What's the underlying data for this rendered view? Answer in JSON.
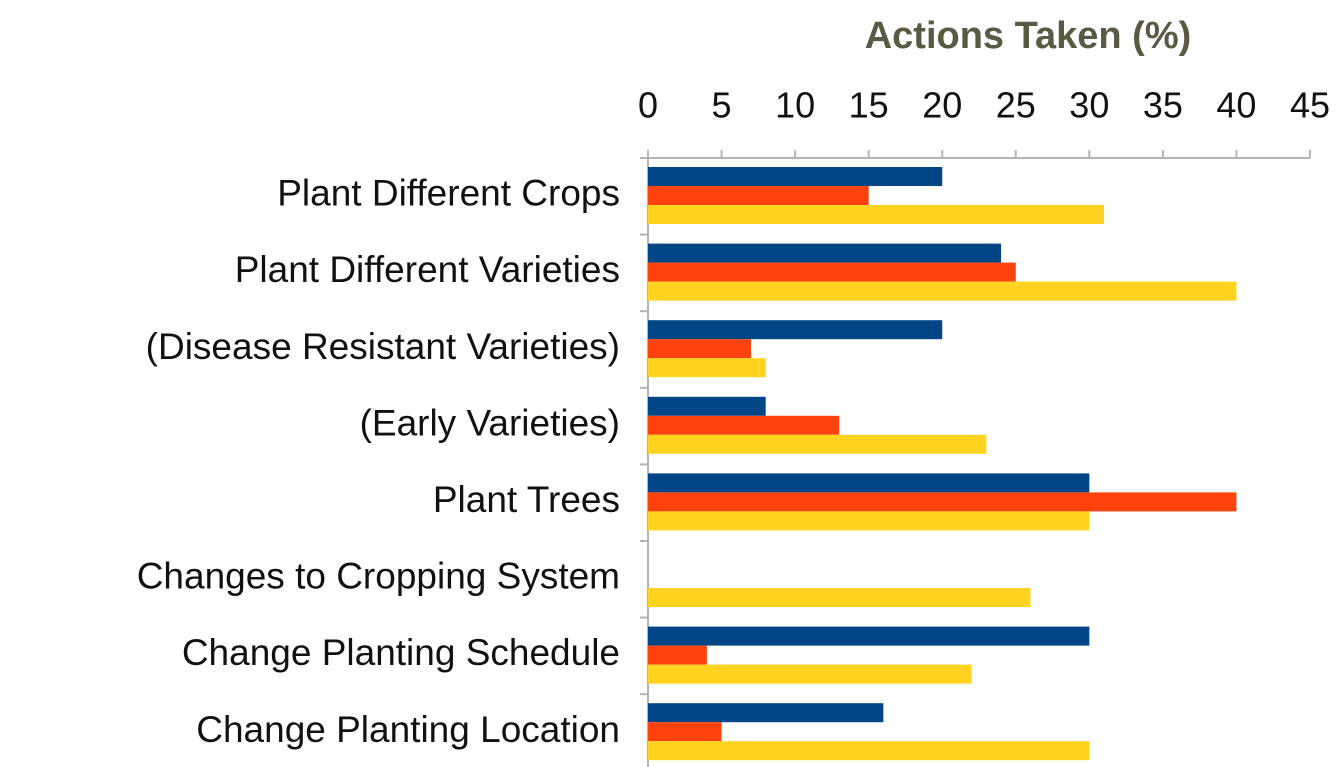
{
  "chart_data": {
    "type": "bar",
    "orientation": "horizontal",
    "title": "Actions Taken (%)",
    "categories": [
      "Plant Different Crops",
      "Plant Different Varieties",
      "(Disease Resistant Varieties)",
      "(Early Varieties)",
      "Plant Trees",
      "Changes to Cropping System",
      "Change Planting Schedule",
      "Change Planting Location"
    ],
    "series": [
      {
        "color": "#004586",
        "values": [
          20,
          24,
          20,
          8,
          30,
          0,
          30,
          16
        ]
      },
      {
        "color": "#ff420e",
        "values": [
          15,
          25,
          7,
          13,
          40,
          0,
          4,
          5
        ]
      },
      {
        "color": "#ffd320",
        "values": [
          31,
          40,
          8,
          23,
          30,
          26,
          22,
          30
        ]
      }
    ],
    "xlim": [
      0,
      45
    ],
    "xticks": [
      0,
      5,
      10,
      15,
      20,
      25,
      30,
      35,
      40,
      45
    ],
    "grid": false,
    "axis_position": "top"
  }
}
